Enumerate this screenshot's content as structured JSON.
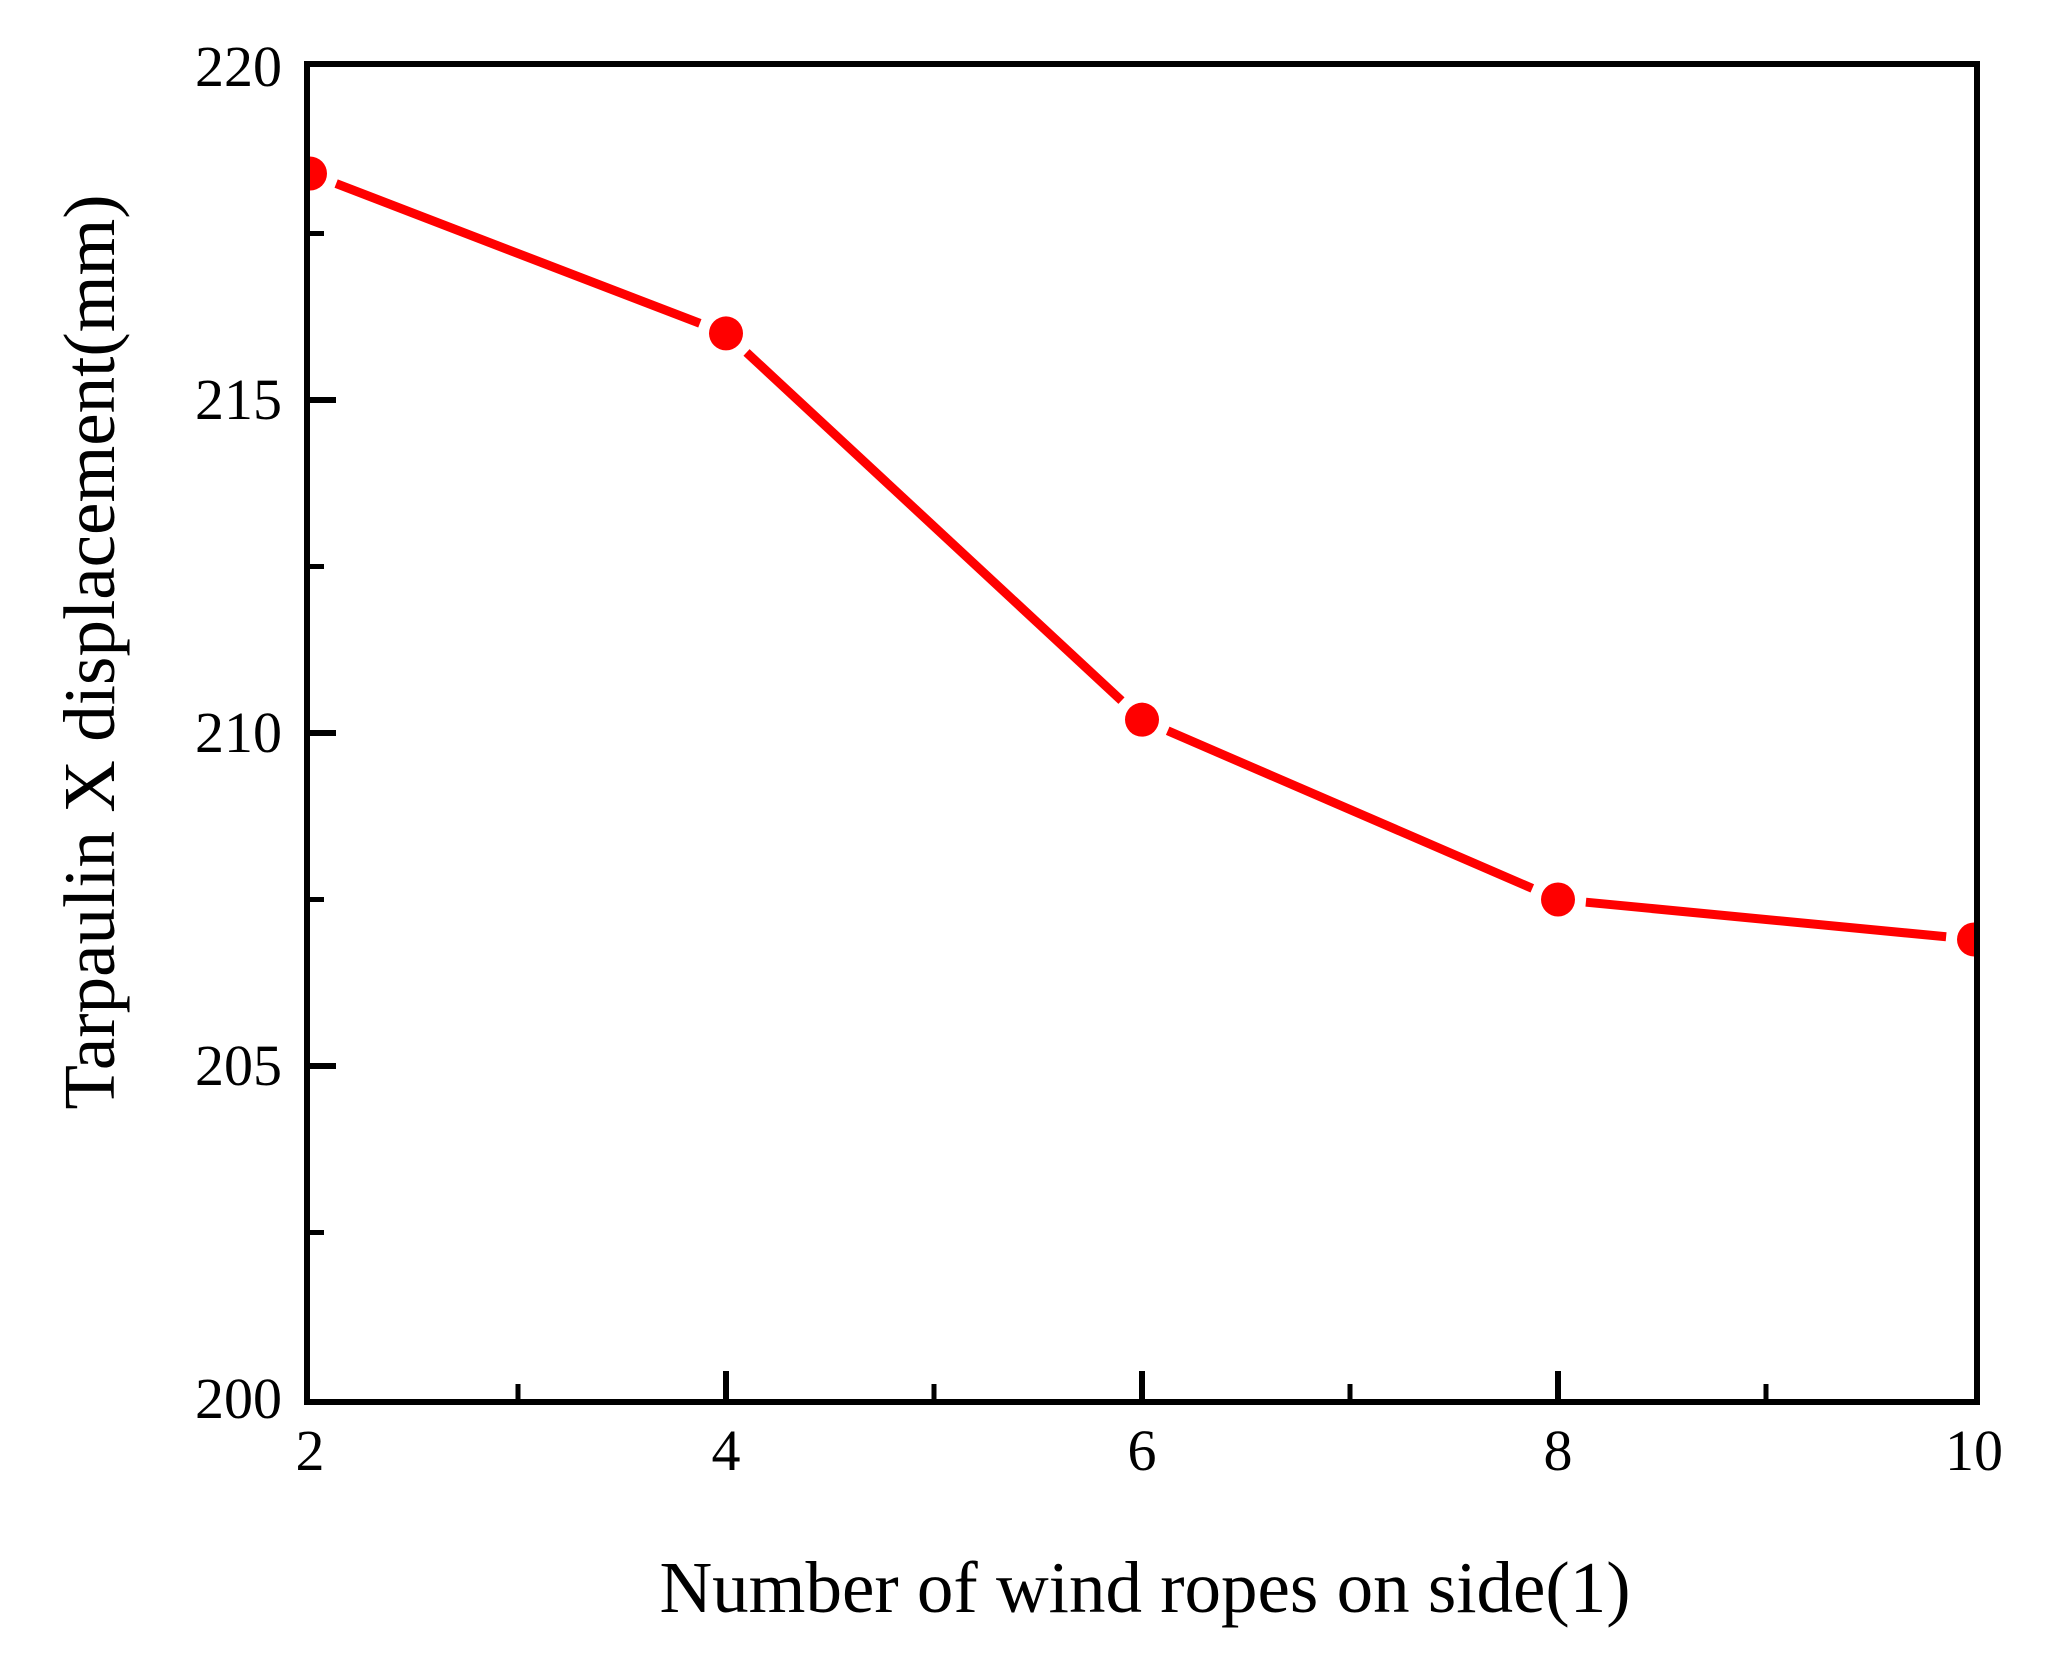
{
  "figure": {
    "background": "#ffffff"
  },
  "chart_data": {
    "type": "line",
    "title": "",
    "xlabel": "Number of wind ropes on side(1)",
    "ylabel": "Tarpaulin X displacement(mm)",
    "x": [
      2,
      4,
      6,
      8,
      10
    ],
    "series": [
      {
        "name": "Tarpaulin X displacement",
        "values": [
          218.4,
          216.0,
          210.2,
          207.5,
          206.9
        ]
      }
    ],
    "xlim": [
      2,
      10
    ],
    "ylim": [
      200,
      220
    ],
    "x_major_ticks": [
      2,
      4,
      6,
      8,
      10
    ],
    "x_minor_ticks": [
      3,
      5,
      7,
      9
    ],
    "x_tick_labels": [
      "2",
      "4",
      "6",
      "8",
      "10"
    ],
    "y_major_ticks": [
      200,
      205,
      210,
      215,
      220
    ],
    "y_minor_ticks": [
      202.5,
      207.5,
      212.5,
      217.5
    ],
    "y_tick_labels": [
      "200",
      "205",
      "210",
      "215",
      "220"
    ],
    "grid": false,
    "legend": "none",
    "style": {
      "line_color": "#ff0000",
      "marker_color": "#ff0000",
      "marker": "filled-circle",
      "axis_color": "#000000",
      "tick_direction": "in"
    }
  }
}
